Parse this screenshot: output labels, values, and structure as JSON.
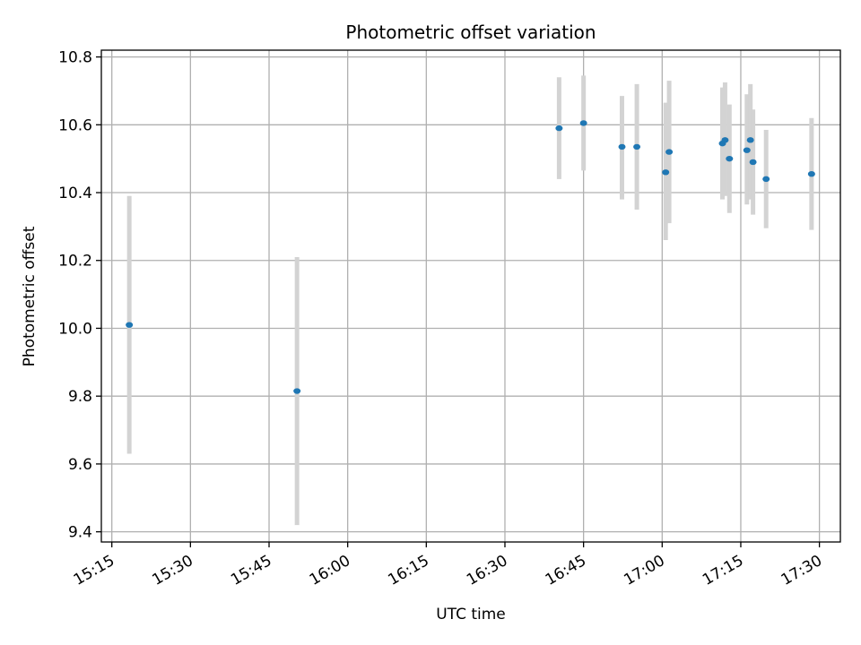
{
  "chart_data": {
    "type": "scatter",
    "title": "Photometric offset variation",
    "xlabel": "UTC time",
    "ylabel": "Photometric offset",
    "x_ticks": [
      "15:15",
      "15:30",
      "15:45",
      "16:00",
      "16:15",
      "16:30",
      "16:45",
      "17:00",
      "17:15",
      "17:30"
    ],
    "xlim": [
      "15:13",
      "17:34"
    ],
    "y_ticks": [
      9.4,
      9.6,
      9.8,
      10.0,
      10.2,
      10.4,
      10.6,
      10.8
    ],
    "ylim": [
      9.37,
      10.82
    ],
    "grid": true,
    "point_color": "#1f77b4",
    "errorbar_color": "#d3d3d3",
    "points": [
      {
        "x": "15:18:20",
        "y": 10.01,
        "yerr_low": 9.63,
        "yerr_high": 10.39
      },
      {
        "x": "15:50:20",
        "y": 9.815,
        "yerr_low": 9.42,
        "yerr_high": 10.21
      },
      {
        "x": "16:40:20",
        "y": 10.59,
        "yerr_low": 10.44,
        "yerr_high": 10.74
      },
      {
        "x": "16:45:00",
        "y": 10.605,
        "yerr_low": 10.465,
        "yerr_high": 10.745
      },
      {
        "x": "16:52:20",
        "y": 10.535,
        "yerr_low": 10.38,
        "yerr_high": 10.685
      },
      {
        "x": "16:55:10",
        "y": 10.535,
        "yerr_low": 10.35,
        "yerr_high": 10.72
      },
      {
        "x": "17:00:40",
        "y": 10.46,
        "yerr_low": 10.26,
        "yerr_high": 10.665
      },
      {
        "x": "17:01:20",
        "y": 10.52,
        "yerr_low": 10.31,
        "yerr_high": 10.73
      },
      {
        "x": "17:11:30",
        "y": 10.545,
        "yerr_low": 10.38,
        "yerr_high": 10.71
      },
      {
        "x": "17:12:00",
        "y": 10.555,
        "yerr_low": 10.39,
        "yerr_high": 10.725
      },
      {
        "x": "17:12:50",
        "y": 10.5,
        "yerr_low": 10.34,
        "yerr_high": 10.66
      },
      {
        "x": "17:16:10",
        "y": 10.525,
        "yerr_low": 10.365,
        "yerr_high": 10.69
      },
      {
        "x": "17:16:50",
        "y": 10.555,
        "yerr_low": 10.38,
        "yerr_high": 10.72
      },
      {
        "x": "17:17:20",
        "y": 10.49,
        "yerr_low": 10.335,
        "yerr_high": 10.645
      },
      {
        "x": "17:19:50",
        "y": 10.44,
        "yerr_low": 10.295,
        "yerr_high": 10.585
      },
      {
        "x": "17:28:30",
        "y": 10.455,
        "yerr_low": 10.29,
        "yerr_high": 10.62
      }
    ]
  }
}
